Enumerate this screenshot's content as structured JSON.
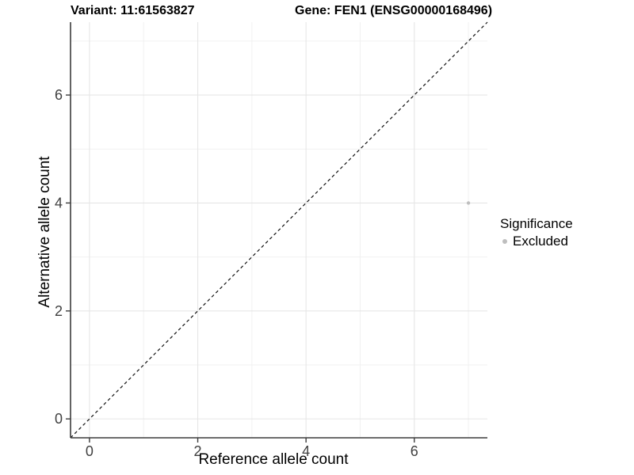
{
  "header": {
    "title_left": "Variant: 11:61563827",
    "title_right": "Gene: FEN1 (ENSG00000168496)"
  },
  "chart_data": {
    "type": "scatter",
    "xlabel": "Reference allele count",
    "ylabel": "Alternative allele count",
    "xlim": [
      -0.35,
      7.35
    ],
    "ylim": [
      -0.35,
      7.35
    ],
    "x_ticks": [
      0,
      2,
      4,
      6
    ],
    "y_ticks": [
      0,
      2,
      4,
      6
    ],
    "x_minor": [
      1,
      3,
      5,
      7
    ],
    "y_minor": [
      1,
      3,
      5,
      7
    ],
    "grid": "major+minor",
    "identity_line": {
      "style": "dashed",
      "x1": -0.35,
      "y1": -0.35,
      "x2": 7.35,
      "y2": 7.35
    },
    "series": [
      {
        "name": "Excluded",
        "color": "#bebebe",
        "point_radius": 2.2,
        "points": [
          {
            "x": 7,
            "y": 4
          }
        ]
      }
    ],
    "legend": {
      "title": "Significance",
      "position": "right",
      "entries": [
        {
          "label": "Excluded",
          "color": "#bebebe"
        }
      ]
    }
  },
  "colors": {
    "grid_major": "#e6e6e6",
    "grid_minor": "#f1f1f1",
    "axis_line": "#3c3c3c",
    "tick_mark": "#3c3c3c",
    "tick_text": "#404040",
    "identity_line": "#111111"
  }
}
